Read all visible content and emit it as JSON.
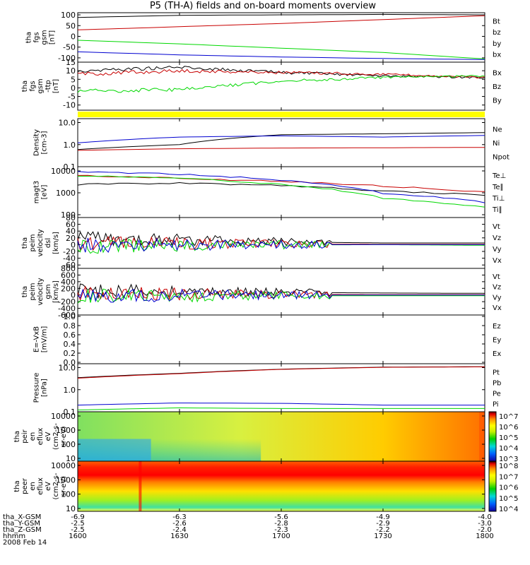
{
  "title": "P5 (TH-A) fields and on-board moments overview",
  "date": "2008 Feb 14",
  "orbit": {
    "labels": [
      "tha_X-GSM",
      "tha_Y-GSM",
      "tha_Z-GSM",
      "hhmm"
    ],
    "rows": [
      [
        "-6.9",
        "-6.3",
        "-5.6",
        "-4.9",
        "-4.0"
      ],
      [
        "-2.5",
        "-2.6",
        "-2.8",
        "-2.9",
        "-3.0"
      ],
      [
        "-2.5",
        "-2.4",
        "-2.3",
        "-2.2",
        "-2.0"
      ],
      [
        "1600",
        "1630",
        "1700",
        "1730",
        "1800"
      ]
    ]
  },
  "colors": {
    "black": "#000000",
    "red": "#c80000",
    "green": "#00d800",
    "blue": "#0000d0",
    "yellow": "#ffff00"
  },
  "panels": [
    {
      "id": "fgs1",
      "ylabel": [
        "tha",
        "fgs",
        "gsm",
        "[nT]"
      ],
      "ticks": [
        "100",
        "50",
        "0",
        "-50",
        "-100"
      ],
      "legend": [
        "Bt",
        "bz",
        "by",
        "bx"
      ]
    },
    {
      "id": "fgs2",
      "ylabel": [
        "tha",
        "fgs",
        "gsm",
        "-ttp",
        "[nT]"
      ],
      "ticks": [
        "15",
        "10",
        "5",
        "0",
        "-5",
        "-10"
      ],
      "legend": [
        "Bx",
        "Bz",
        "By"
      ]
    },
    {
      "id": "bar",
      "ylabel": [],
      "ticks": [],
      "legend": []
    },
    {
      "id": "density",
      "ylabel": [
        "Density",
        "[cm-3]"
      ],
      "ticks": [
        "10.0",
        "1.0",
        "0.1"
      ],
      "legend": [
        "Ne",
        "Ni",
        "Npot"
      ]
    },
    {
      "id": "temp",
      "ylabel": [
        "magt3",
        "[eV]"
      ],
      "ticks": [
        "10000",
        "1000",
        "100"
      ],
      "legend": [
        "Te⊥",
        "Te∥",
        "Ti⊥",
        "Ti∥"
      ]
    },
    {
      "id": "vel1",
      "ylabel": [
        "tha",
        "peim",
        "velocity",
        "dsl",
        "[km/s]"
      ],
      "ticks": [
        "80",
        "60",
        "40",
        "20",
        "0",
        "-20",
        "-40",
        "-60"
      ],
      "legend": [
        "Vt",
        "Vz",
        "Vy",
        "Vx"
      ]
    },
    {
      "id": "vel2",
      "ylabel": [
        "tha",
        "peim",
        "velocity",
        "gsm",
        "[km/s]"
      ],
      "ticks": [
        "800",
        "600",
        "400",
        "200",
        "0",
        "-200",
        "-400",
        "-600"
      ],
      "legend": [
        "Vt",
        "Vz",
        "Vy",
        "Vx"
      ]
    },
    {
      "id": "efield",
      "ylabel": [
        "E=-VxB",
        "[mV/m]"
      ],
      "ticks": [
        "1.0",
        "0.8",
        "0.6",
        "0.4",
        "0.2",
        "0.0"
      ],
      "legend": [
        "Ez",
        "Ey",
        "Ex"
      ]
    },
    {
      "id": "press",
      "ylabel": [
        "Pressure",
        "[nPa]"
      ],
      "ticks": [
        "10.0",
        "1.0",
        "0.1"
      ],
      "legend": [
        "Pt",
        "Pb",
        "Pe",
        "Pi"
      ]
    },
    {
      "id": "spec1",
      "ylabel": [
        "tha",
        "peir",
        "en",
        "eflux",
        "eV",
        "(cm2-s-",
        "sr-eV)"
      ],
      "ticks": [
        "10000",
        "1000",
        "100",
        "10"
      ],
      "legend": [],
      "cbar": [
        "10^7",
        "10^6",
        "10^5",
        "10^4",
        "10^3"
      ]
    },
    {
      "id": "spec2",
      "ylabel": [
        "tha",
        "peer",
        "en",
        "eflux",
        "eV",
        "(cm2-s-",
        "sr-eV)"
      ],
      "ticks": [
        "10000",
        "1000",
        "100",
        "10"
      ],
      "legend": [],
      "cbar": [
        "10^8",
        "10^7",
        "10^6",
        "10^5",
        "10^4"
      ]
    }
  ],
  "chart_data": [
    {
      "type": "line",
      "panel": "fgs1",
      "ylim": [
        -120,
        110
      ],
      "x": [
        1600,
        1630,
        1700,
        1730,
        1800
      ],
      "series": [
        {
          "name": "Bt",
          "values": [
            88,
            98,
            100,
            102,
            100
          ]
        },
        {
          "name": "bz",
          "values": [
            30,
            45,
            60,
            78,
            96
          ]
        },
        {
          "name": "by",
          "values": [
            -18,
            -35,
            -55,
            -75,
            -105
          ]
        },
        {
          "name": "bx",
          "values": [
            -72,
            -86,
            -96,
            -103,
            -108
          ]
        }
      ]
    },
    {
      "type": "line",
      "panel": "fgs2",
      "ylim": [
        -13,
        15
      ],
      "x": [
        1600,
        1630,
        1700,
        1730,
        1800
      ],
      "series": [
        {
          "name": "Bx",
          "values": [
            10,
            12,
            9,
            7,
            6
          ]
        },
        {
          "name": "Bz",
          "values": [
            8,
            10,
            9,
            8,
            6
          ]
        },
        {
          "name": "By",
          "values": [
            -2,
            -1,
            4,
            6,
            7
          ]
        }
      ]
    },
    {
      "type": "line",
      "panel": "density",
      "ylim": [
        0.1,
        15
      ],
      "log": true,
      "x": [
        1600,
        1630,
        1700,
        1730,
        1800
      ],
      "series": [
        {
          "name": "Ne",
          "values": [
            0.55,
            0.65,
            0.7,
            0.72,
            0.75
          ]
        },
        {
          "name": "Ni",
          "values": [
            0.6,
            1.0,
            2.8,
            3.1,
            3.5
          ]
        },
        {
          "name": "Npot",
          "values": [
            1.2,
            2.2,
            2.5,
            2.2,
            2.6
          ]
        }
      ]
    },
    {
      "type": "line",
      "panel": "temp",
      "ylim": [
        100,
        10000
      ],
      "log": true,
      "x": [
        1600,
        1630,
        1700,
        1730,
        1800
      ],
      "series": [
        {
          "name": "Te⊥",
          "values": [
            4500,
            3500,
            2600,
            1700,
            1000
          ]
        },
        {
          "name": "Te∥",
          "values": [
            2000,
            2300,
            1800,
            1100,
            750
          ]
        },
        {
          "name": "Ti⊥",
          "values": [
            6500,
            5000,
            3000,
            900,
            400
          ]
        },
        {
          "name": "Ti∥",
          "values": [
            4500,
            3500,
            2000,
            550,
            250
          ]
        }
      ]
    },
    {
      "type": "line",
      "panel": "vel1",
      "ylim": [
        -70,
        80
      ],
      "x": [
        1600,
        1630,
        1700,
        1730,
        1800
      ],
      "series": [
        {
          "name": "Vt",
          "values": [
            20,
            15,
            8,
            5,
            5
          ]
        },
        {
          "name": "Vz",
          "values": [
            5,
            3,
            2,
            1,
            1
          ]
        },
        {
          "name": "Vy",
          "values": [
            -5,
            -3,
            -1,
            0,
            -2
          ]
        },
        {
          "name": "Vx",
          "values": [
            -2,
            -1,
            0,
            0,
            0
          ]
        }
      ]
    },
    {
      "type": "line",
      "panel": "vel2",
      "ylim": [
        -600,
        800
      ],
      "x": [
        1600,
        1630,
        1700,
        1730,
        1800
      ],
      "series": [
        {
          "name": "Vt",
          "values": [
            120,
            110,
            80,
            60,
            50
          ]
        },
        {
          "name": "Vz",
          "values": [
            40,
            30,
            20,
            10,
            10
          ]
        },
        {
          "name": "Vy",
          "values": [
            -40,
            -30,
            -20,
            -20,
            -20
          ]
        },
        {
          "name": "Vx",
          "values": [
            -20,
            -10,
            0,
            0,
            0
          ]
        }
      ]
    },
    {
      "type": "line",
      "panel": "press",
      "ylim": [
        0.1,
        15
      ],
      "log": true,
      "x": [
        1600,
        1630,
        1700,
        1730,
        1800
      ],
      "series": [
        {
          "name": "Pt",
          "values": [
            3.5,
            5.5,
            8.5,
            10.5,
            11
          ]
        },
        {
          "name": "Pb",
          "values": [
            3.3,
            5.3,
            8.3,
            10.3,
            10.8
          ]
        },
        {
          "name": "Pe",
          "values": [
            0.12,
            0.15,
            0.14,
            0.14,
            0.14
          ]
        },
        {
          "name": "Pi",
          "values": [
            0.2,
            0.25,
            0.24,
            0.2,
            0.2
          ]
        }
      ]
    },
    {
      "type": "heatmap",
      "panel": "spec1",
      "ylim": [
        10,
        10000
      ],
      "log": true,
      "x": [
        1600,
        1800
      ]
    },
    {
      "type": "heatmap",
      "panel": "spec2",
      "ylim": [
        10,
        10000
      ],
      "log": true,
      "x": [
        1600,
        1800
      ]
    }
  ]
}
